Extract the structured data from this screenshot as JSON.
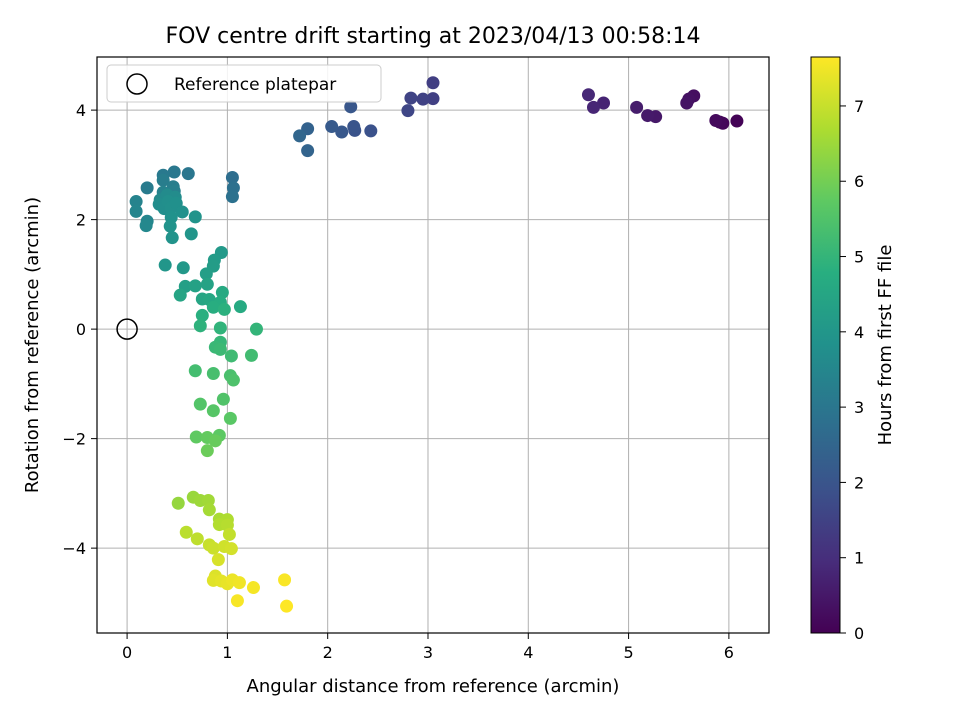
{
  "chart_data": {
    "type": "scatter",
    "title": "FOV centre drift starting at 2023/04/13 00:58:14",
    "xlabel": "Angular distance from reference (arcmin)",
    "ylabel": "Rotation from reference (arcmin)",
    "xlim": [
      -0.3,
      6.4
    ],
    "ylim": [
      -5.55,
      4.97
    ],
    "xticks": [
      0,
      1,
      2,
      3,
      4,
      5,
      6
    ],
    "yticks": [
      -4,
      -2,
      0,
      2,
      4
    ],
    "grid": true,
    "legend": {
      "placement": "top-left",
      "entries": [
        "Reference platepar"
      ]
    },
    "reference_point": {
      "x": 0,
      "y": 0
    },
    "colorbar": {
      "label": "Hours from first FF file",
      "colormap": "viridis",
      "min": 0,
      "max": 7.65,
      "ticks": [
        0,
        1,
        2,
        3,
        4,
        5,
        6,
        7
      ]
    },
    "points": [
      {
        "x": 6.08,
        "y": 3.8,
        "h": 0.05
      },
      {
        "x": 5.94,
        "y": 3.76,
        "h": 0.1
      },
      {
        "x": 5.91,
        "y": 3.78,
        "h": 0.15
      },
      {
        "x": 5.87,
        "y": 3.81,
        "h": 0.2
      },
      {
        "x": 5.65,
        "y": 4.26,
        "h": 0.3
      },
      {
        "x": 5.6,
        "y": 4.2,
        "h": 0.35
      },
      {
        "x": 5.58,
        "y": 4.13,
        "h": 0.4
      },
      {
        "x": 5.27,
        "y": 3.88,
        "h": 0.5
      },
      {
        "x": 5.19,
        "y": 3.9,
        "h": 0.55
      },
      {
        "x": 5.08,
        "y": 4.05,
        "h": 0.6
      },
      {
        "x": 4.75,
        "y": 4.13,
        "h": 0.75
      },
      {
        "x": 4.65,
        "y": 4.05,
        "h": 0.8
      },
      {
        "x": 4.6,
        "y": 4.28,
        "h": 0.85
      },
      {
        "x": 3.05,
        "y": 4.5,
        "h": 1.4
      },
      {
        "x": 3.05,
        "y": 4.21,
        "h": 1.45
      },
      {
        "x": 2.95,
        "y": 4.2,
        "h": 1.5
      },
      {
        "x": 2.83,
        "y": 4.22,
        "h": 1.55
      },
      {
        "x": 2.8,
        "y": 3.99,
        "h": 1.6
      },
      {
        "x": 2.43,
        "y": 3.62,
        "h": 1.9
      },
      {
        "x": 2.27,
        "y": 3.63,
        "h": 1.95
      },
      {
        "x": 2.26,
        "y": 3.7,
        "h": 2.0
      },
      {
        "x": 2.23,
        "y": 4.06,
        "h": 2.05
      },
      {
        "x": 2.14,
        "y": 3.6,
        "h": 2.1
      },
      {
        "x": 2.04,
        "y": 3.7,
        "h": 2.15
      },
      {
        "x": 1.8,
        "y": 3.66,
        "h": 2.4
      },
      {
        "x": 1.8,
        "y": 3.26,
        "h": 2.45
      },
      {
        "x": 1.72,
        "y": 3.53,
        "h": 2.5
      },
      {
        "x": 1.05,
        "y": 2.77,
        "h": 2.75
      },
      {
        "x": 1.06,
        "y": 2.58,
        "h": 2.8
      },
      {
        "x": 1.05,
        "y": 2.42,
        "h": 2.85
      },
      {
        "x": 0.61,
        "y": 2.84,
        "h": 3.0
      },
      {
        "x": 0.47,
        "y": 2.87,
        "h": 3.05
      },
      {
        "x": 0.36,
        "y": 2.81,
        "h": 3.1
      },
      {
        "x": 0.2,
        "y": 2.58,
        "h": 3.15
      },
      {
        "x": 0.36,
        "y": 2.72,
        "h": 3.2
      },
      {
        "x": 0.46,
        "y": 2.6,
        "h": 3.25
      },
      {
        "x": 0.47,
        "y": 2.52,
        "h": 3.3
      },
      {
        "x": 0.36,
        "y": 2.5,
        "h": 3.35
      },
      {
        "x": 0.09,
        "y": 2.33,
        "h": 3.4
      },
      {
        "x": 0.09,
        "y": 2.15,
        "h": 3.45
      },
      {
        "x": 0.2,
        "y": 1.97,
        "h": 3.5
      },
      {
        "x": 0.19,
        "y": 1.89,
        "h": 3.55
      },
      {
        "x": 0.33,
        "y": 2.36,
        "h": 3.6
      },
      {
        "x": 0.36,
        "y": 2.27,
        "h": 3.62
      },
      {
        "x": 0.4,
        "y": 2.45,
        "h": 3.65
      },
      {
        "x": 0.48,
        "y": 2.41,
        "h": 3.68
      },
      {
        "x": 0.32,
        "y": 2.28,
        "h": 3.7
      },
      {
        "x": 0.37,
        "y": 2.2,
        "h": 3.72
      },
      {
        "x": 0.41,
        "y": 2.33,
        "h": 3.75
      },
      {
        "x": 0.44,
        "y": 2.21,
        "h": 3.78
      },
      {
        "x": 0.49,
        "y": 2.3,
        "h": 3.8
      },
      {
        "x": 0.55,
        "y": 2.14,
        "h": 3.83
      },
      {
        "x": 0.44,
        "y": 2.04,
        "h": 3.85
      },
      {
        "x": 0.43,
        "y": 1.88,
        "h": 3.88
      },
      {
        "x": 0.45,
        "y": 1.67,
        "h": 3.9
      },
      {
        "x": 0.68,
        "y": 2.05,
        "h": 3.93
      },
      {
        "x": 0.64,
        "y": 1.74,
        "h": 3.96
      },
      {
        "x": 0.38,
        "y": 1.17,
        "h": 4.0
      },
      {
        "x": 0.56,
        "y": 1.12,
        "h": 4.05
      },
      {
        "x": 0.94,
        "y": 1.4,
        "h": 4.1
      },
      {
        "x": 0.87,
        "y": 1.26,
        "h": 4.15
      },
      {
        "x": 0.86,
        "y": 1.15,
        "h": 4.2
      },
      {
        "x": 0.79,
        "y": 1.01,
        "h": 4.25
      },
      {
        "x": 0.58,
        "y": 0.78,
        "h": 4.3
      },
      {
        "x": 0.68,
        "y": 0.79,
        "h": 4.35
      },
      {
        "x": 0.8,
        "y": 0.82,
        "h": 4.4
      },
      {
        "x": 0.53,
        "y": 0.62,
        "h": 4.45
      },
      {
        "x": 0.75,
        "y": 0.55,
        "h": 4.5
      },
      {
        "x": 0.82,
        "y": 0.54,
        "h": 4.55
      },
      {
        "x": 0.95,
        "y": 0.67,
        "h": 4.6
      },
      {
        "x": 1.13,
        "y": 0.41,
        "h": 4.65
      },
      {
        "x": 0.93,
        "y": 0.49,
        "h": 4.7
      },
      {
        "x": 0.86,
        "y": 0.4,
        "h": 4.75
      },
      {
        "x": 0.75,
        "y": 0.25,
        "h": 4.8
      },
      {
        "x": 0.97,
        "y": 0.36,
        "h": 4.85
      },
      {
        "x": 0.73,
        "y": 0.06,
        "h": 4.9
      },
      {
        "x": 0.93,
        "y": 0.02,
        "h": 4.95
      },
      {
        "x": 1.29,
        "y": 0.0,
        "h": 5.0
      },
      {
        "x": 0.93,
        "y": -0.24,
        "h": 5.05
      },
      {
        "x": 0.88,
        "y": -0.33,
        "h": 5.1
      },
      {
        "x": 0.93,
        "y": -0.37,
        "h": 5.15
      },
      {
        "x": 1.04,
        "y": -0.49,
        "h": 5.2
      },
      {
        "x": 1.24,
        "y": -0.48,
        "h": 5.25
      },
      {
        "x": 0.68,
        "y": -0.76,
        "h": 5.3
      },
      {
        "x": 0.86,
        "y": -0.81,
        "h": 5.35
      },
      {
        "x": 1.03,
        "y": -0.85,
        "h": 5.4
      },
      {
        "x": 1.06,
        "y": -0.93,
        "h": 5.45
      },
      {
        "x": 0.96,
        "y": -1.28,
        "h": 5.5
      },
      {
        "x": 0.73,
        "y": -1.37,
        "h": 5.55
      },
      {
        "x": 0.86,
        "y": -1.49,
        "h": 5.6
      },
      {
        "x": 1.03,
        "y": -1.63,
        "h": 5.65
      },
      {
        "x": 0.92,
        "y": -1.94,
        "h": 5.7
      },
      {
        "x": 0.69,
        "y": -1.97,
        "h": 5.75
      },
      {
        "x": 0.8,
        "y": -1.98,
        "h": 5.8
      },
      {
        "x": 0.88,
        "y": -2.04,
        "h": 5.85
      },
      {
        "x": 0.8,
        "y": -2.22,
        "h": 5.9
      },
      {
        "x": 0.51,
        "y": -3.18,
        "h": 6.4
      },
      {
        "x": 0.66,
        "y": -3.07,
        "h": 6.45
      },
      {
        "x": 0.73,
        "y": -3.13,
        "h": 6.5
      },
      {
        "x": 0.81,
        "y": -3.13,
        "h": 6.55
      },
      {
        "x": 0.82,
        "y": -3.3,
        "h": 6.6
      },
      {
        "x": 0.92,
        "y": -3.47,
        "h": 6.65
      },
      {
        "x": 1.0,
        "y": -3.48,
        "h": 6.7
      },
      {
        "x": 0.92,
        "y": -3.57,
        "h": 6.75
      },
      {
        "x": 1.0,
        "y": -3.58,
        "h": 6.8
      },
      {
        "x": 0.59,
        "y": -3.71,
        "h": 6.85
      },
      {
        "x": 0.7,
        "y": -3.83,
        "h": 6.9
      },
      {
        "x": 1.02,
        "y": -3.75,
        "h": 6.95
      },
      {
        "x": 0.82,
        "y": -3.94,
        "h": 7.0
      },
      {
        "x": 0.86,
        "y": -4.0,
        "h": 7.05
      },
      {
        "x": 0.97,
        "y": -3.97,
        "h": 7.1
      },
      {
        "x": 1.04,
        "y": -4.01,
        "h": 7.15
      },
      {
        "x": 0.91,
        "y": -4.21,
        "h": 7.2
      },
      {
        "x": 0.88,
        "y": -4.51,
        "h": 7.25
      },
      {
        "x": 0.86,
        "y": -4.59,
        "h": 7.3
      },
      {
        "x": 0.94,
        "y": -4.6,
        "h": 7.35
      },
      {
        "x": 1.0,
        "y": -4.65,
        "h": 7.4
      },
      {
        "x": 1.05,
        "y": -4.58,
        "h": 7.45
      },
      {
        "x": 1.12,
        "y": -4.63,
        "h": 7.5
      },
      {
        "x": 1.26,
        "y": -4.72,
        "h": 7.55
      },
      {
        "x": 1.1,
        "y": -4.96,
        "h": 7.58
      },
      {
        "x": 1.57,
        "y": -4.58,
        "h": 7.6
      },
      {
        "x": 1.59,
        "y": -5.06,
        "h": 7.65
      }
    ]
  }
}
